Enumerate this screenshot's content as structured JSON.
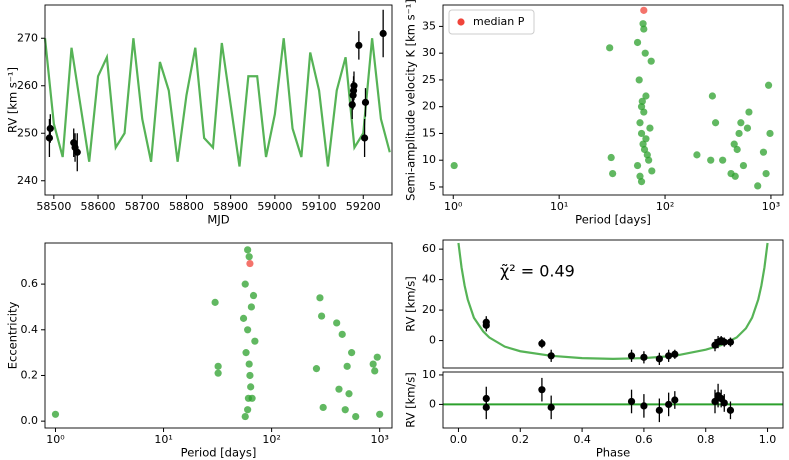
{
  "chart_data": [
    {
      "type": "scatter",
      "xlabel": "MJD",
      "ylabel": "RV [km s⁻¹]",
      "xlim": [
        58480,
        59265
      ],
      "ylim": [
        237,
        277
      ],
      "xticks": [
        58500,
        58600,
        58700,
        58800,
        58900,
        59000,
        59100,
        59200
      ],
      "yticks": [
        240,
        250,
        260,
        270
      ],
      "series": [
        {
          "mode": "line",
          "color": "#2ca02c",
          "x": [
            58480,
            58500,
            58520,
            58540,
            58560,
            58580,
            58600,
            58620,
            58640,
            58660,
            58680,
            58700,
            58720,
            58740,
            58760,
            58780,
            58800,
            58820,
            58840,
            58860,
            58880,
            58900,
            58920,
            58940,
            58960,
            58980,
            59000,
            59020,
            59040,
            59060,
            59080,
            59100,
            59120,
            59140,
            59160,
            59180,
            59200,
            59220,
            59240,
            59260
          ],
          "values": [
            270,
            252,
            245,
            268,
            256,
            244,
            262,
            266,
            247,
            250,
            270,
            253,
            244,
            265,
            259,
            244,
            258,
            268,
            249,
            247,
            269,
            256,
            243,
            262,
            262,
            245,
            254,
            270,
            251,
            245,
            267,
            259,
            243,
            259,
            266,
            247,
            250,
            270,
            253,
            246
          ]
        },
        {
          "mode": "points",
          "color": "#000000",
          "x": [
            58490,
            58492,
            58545,
            58548,
            58553,
            59175,
            59177,
            59178,
            59179,
            59190,
            59203,
            59205,
            59245
          ],
          "values": [
            249,
            251,
            248,
            247,
            246,
            256,
            258,
            259,
            260,
            268.5,
            249,
            256.5,
            271
          ],
          "errors": [
            4,
            3,
            3,
            3,
            4,
            3,
            3,
            3,
            3,
            3,
            4,
            3,
            5
          ]
        }
      ]
    },
    {
      "type": "scatter",
      "xlabel": "Period [days]",
      "ylabel": "Semi-amplitude velocity K [km s⁻¹]",
      "xscale": "log",
      "xlim": [
        0.8,
        1300
      ],
      "ylim": [
        3.5,
        39
      ],
      "xticks": [
        {
          "value": 1,
          "label": "10⁰"
        },
        {
          "value": 10,
          "label": "10¹"
        },
        {
          "value": 100,
          "label": "10²"
        },
        {
          "value": 1000,
          "label": "10³"
        }
      ],
      "yticks": [
        5,
        10,
        15,
        20,
        25,
        30,
        35
      ],
      "legend": "upper left",
      "series": [
        {
          "mode": "points",
          "color": "#2ca02c",
          "x": [
            1.02,
            30,
            31,
            32,
            55,
            57,
            60,
            62,
            63,
            65,
            58,
            60,
            62,
            64,
            66,
            68,
            70,
            72,
            55,
            58,
            60,
            75,
            74,
            66,
            63,
            61,
            280,
            270,
            300,
            420,
            450,
            500,
            520,
            480,
            550,
            600,
            750,
            850,
            950,
            980,
            900,
            200,
            460,
            350,
            620
          ],
          "values": [
            9,
            31,
            10.5,
            7.5,
            32,
            25,
            20,
            35.5,
            34.5,
            30,
            17,
            15,
            13,
            12,
            14,
            11,
            10,
            16,
            9,
            7,
            6,
            8,
            28.5,
            22,
            19,
            21,
            22,
            10,
            17,
            7.5,
            13,
            15,
            17,
            12,
            9,
            16,
            5.2,
            11.5,
            24,
            15,
            7.5,
            11,
            7,
            10,
            19
          ]
        },
        {
          "mode": "points",
          "name": "median P",
          "color": "#f0443a",
          "x": [
            63
          ],
          "values": [
            38
          ]
        }
      ]
    },
    {
      "type": "scatter",
      "xlabel": "Period [days]",
      "ylabel": "Eccentricity",
      "xscale": "log",
      "xlim": [
        0.8,
        1300
      ],
      "ylim": [
        -0.03,
        0.78
      ],
      "xticks": [
        {
          "value": 1,
          "label": "10⁰"
        },
        {
          "value": 10,
          "label": "10¹"
        },
        {
          "value": 100,
          "label": "10²"
        },
        {
          "value": 1000,
          "label": "10³"
        }
      ],
      "yticks": [
        {
          "value": 0,
          "label": "0.0"
        },
        {
          "value": 0.2,
          "label": "0.2"
        },
        {
          "value": 0.4,
          "label": "0.4"
        },
        {
          "value": 0.6,
          "label": "0.6"
        }
      ],
      "series": [
        {
          "mode": "points",
          "color": "#2ca02c",
          "x": [
            1.0,
            30,
            32,
            32,
            60,
            57,
            62,
            65,
            60,
            58,
            62,
            64,
            66,
            60,
            57,
            70,
            55,
            68,
            63,
            61,
            280,
            290,
            300,
            260,
            400,
            450,
            500,
            520,
            480,
            550,
            420,
            600,
            900,
            950,
            1000,
            870
          ],
          "values": [
            0.03,
            0.52,
            0.24,
            0.21,
            0.75,
            0.6,
            0.72,
            0.5,
            0.4,
            0.3,
            0.25,
            0.15,
            0.1,
            0.05,
            0.02,
            0.35,
            0.45,
            0.55,
            0.2,
            0.1,
            0.54,
            0.46,
            0.06,
            0.23,
            0.43,
            0.38,
            0.24,
            0.12,
            0.05,
            0.3,
            0.14,
            0.02,
            0.22,
            0.28,
            0.03,
            0.25
          ]
        },
        {
          "mode": "points",
          "color": "#f0443a",
          "x": [
            63
          ],
          "values": [
            0.69
          ]
        }
      ]
    },
    {
      "type": "scatter",
      "ylabel": "RV [km/s]",
      "annotation": "χ̃² = 0.49",
      "xlim": [
        -0.05,
        1.05
      ],
      "ylim": [
        -18,
        66
      ],
      "yticks": [
        0,
        20,
        40,
        60
      ],
      "series": [
        {
          "mode": "line",
          "color": "#2ca02c",
          "x": [
            0,
            0.01,
            0.02,
            0.03,
            0.05,
            0.08,
            0.1,
            0.15,
            0.2,
            0.3,
            0.4,
            0.5,
            0.6,
            0.7,
            0.8,
            0.85,
            0.9,
            0.93,
            0.95,
            0.97,
            0.98,
            0.99,
            1.0
          ],
          "values": [
            64,
            48,
            36,
            27,
            15,
            6,
            2,
            -4,
            -7,
            -10,
            -11.5,
            -12,
            -11.5,
            -10,
            -6,
            -3,
            2,
            8,
            15,
            27,
            36,
            48,
            64
          ]
        },
        {
          "mode": "points",
          "color": "#000000",
          "x": [
            0.09,
            0.09,
            0.27,
            0.3,
            0.56,
            0.6,
            0.65,
            0.68,
            0.7,
            0.83,
            0.84,
            0.85,
            0.86,
            0.88
          ],
          "values": [
            10,
            12,
            -2,
            -10,
            -10,
            -11,
            -12,
            -10,
            -9,
            -3,
            -1,
            0,
            -1,
            -1
          ],
          "errors": [
            4,
            4,
            3,
            4,
            4,
            4,
            4,
            4,
            3,
            4,
            4,
            3,
            3,
            3
          ]
        }
      ]
    },
    {
      "type": "scatter",
      "xlabel": "Phase",
      "ylabel": "RV [km/s]",
      "hline": 0,
      "hline_color": "#2ca02c",
      "xlim": [
        -0.05,
        1.05
      ],
      "ylim": [
        -8,
        11
      ],
      "xticks": [
        {
          "value": 0,
          "label": "0.0"
        },
        {
          "value": 0.2,
          "label": "0.2"
        },
        {
          "value": 0.4,
          "label": "0.4"
        },
        {
          "value": 0.6,
          "label": "0.6"
        },
        {
          "value": 0.8,
          "label": "0.8"
        },
        {
          "value": 1,
          "label": "1.0"
        }
      ],
      "yticks": [
        0,
        10
      ],
      "series": [
        {
          "mode": "points",
          "color": "#000000",
          "x": [
            0.09,
            0.09,
            0.27,
            0.3,
            0.56,
            0.6,
            0.65,
            0.68,
            0.7,
            0.83,
            0.84,
            0.85,
            0.86,
            0.88
          ],
          "values": [
            2,
            -1,
            5,
            -1,
            1,
            -0.5,
            -2,
            0,
            1.5,
            1,
            3,
            2,
            0.5,
            -2
          ],
          "errors": [
            4,
            4,
            4,
            4,
            4,
            4,
            4,
            4,
            3,
            4,
            4,
            3,
            3,
            3
          ]
        }
      ]
    }
  ]
}
